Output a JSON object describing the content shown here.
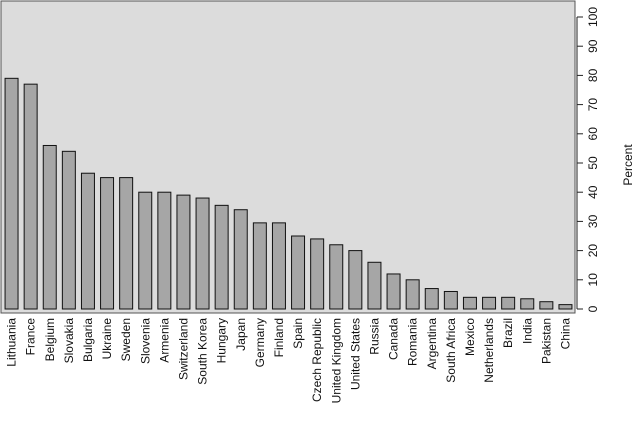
{
  "chart_data": {
    "type": "bar",
    "y_label": "Percent",
    "categories": [
      "Lithuania",
      "France",
      "Belgium",
      "Slovakia",
      "Bulgaria",
      "Ukraine",
      "Sweden",
      "Slovenia",
      "Armenia",
      "Switzerland",
      "South Korea",
      "Hungary",
      "Japan",
      "Germany",
      "Finland",
      "Spain",
      "Czech Republic",
      "United Kingdom",
      "United States",
      "Russia",
      "Canada",
      "Romania",
      "Argentina",
      "South Africa",
      "Mexico",
      "Netherlands",
      "Brazil",
      "India",
      "Pakistan",
      "China"
    ],
    "values": [
      79,
      77,
      56,
      54,
      46.5,
      45,
      45,
      40,
      40,
      39,
      38,
      35.5,
      34,
      29.5,
      29.5,
      25,
      24,
      22,
      20,
      16,
      12,
      10,
      7,
      6,
      4,
      4,
      4,
      3.5,
      2.5,
      1.5
    ],
    "color": "#a6a6a6",
    "background": "#dcdcdc",
    "ylim": [
      0,
      100
    ],
    "yticks": [
      0,
      10,
      20,
      30,
      40,
      50,
      60,
      70,
      80,
      90,
      100
    ],
    "y_axis_side": "right"
  }
}
